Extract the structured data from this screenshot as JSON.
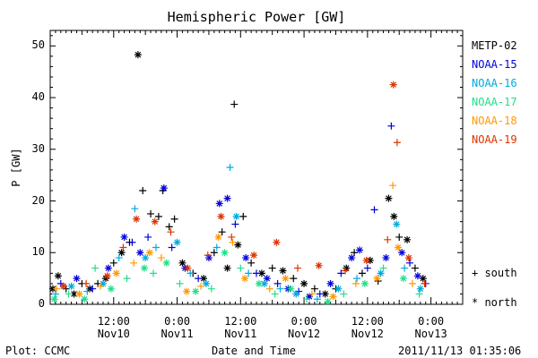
{
  "chart_data": {
    "type": "scatter",
    "title": "Hemispheric Power [GW]",
    "ylabel": "P [GW]",
    "xlabel": "Date and Time",
    "ylim": [
      0,
      53
    ],
    "yticks": [
      0,
      10,
      20,
      30,
      40,
      50
    ],
    "xlim_hours": [
      0,
      78
    ],
    "xticks": [
      {
        "hour": 12,
        "time": "12:00",
        "date": "Nov10"
      },
      {
        "hour": 24,
        "time": "0:00",
        "date": "Nov11"
      },
      {
        "hour": 36,
        "time": "12:00",
        "date": "Nov11"
      },
      {
        "hour": 48,
        "time": "0:00",
        "date": "Nov12"
      },
      {
        "hour": 60,
        "time": "12:00",
        "date": "Nov12"
      },
      {
        "hour": 72,
        "time": "0:00",
        "date": "Nov13"
      }
    ],
    "grid": false,
    "legend_position": "right",
    "series": [
      {
        "name": "METP-02",
        "color": "#000000",
        "points": [
          {
            "x": 0.5,
            "y": 3,
            "h": "n"
          },
          {
            "x": 1.5,
            "y": 5.5,
            "h": "n"
          },
          {
            "x": 3,
            "y": 3,
            "h": "s"
          },
          {
            "x": 4.5,
            "y": 2,
            "h": "n"
          },
          {
            "x": 6,
            "y": 4,
            "h": "s"
          },
          {
            "x": 7.5,
            "y": 3,
            "h": "n"
          },
          {
            "x": 9,
            "y": 4,
            "h": "s"
          },
          {
            "x": 10.5,
            "y": 5,
            "h": "n"
          },
          {
            "x": 12,
            "y": 8,
            "h": "s"
          },
          {
            "x": 13.5,
            "y": 10,
            "h": "n"
          },
          {
            "x": 15,
            "y": 12,
            "h": "s"
          },
          {
            "x": 16.6,
            "y": 48.3,
            "h": "n"
          },
          {
            "x": 17.5,
            "y": 22,
            "h": "s"
          },
          {
            "x": 19,
            "y": 17.5,
            "h": "s"
          },
          {
            "x": 20.5,
            "y": 17,
            "h": "s"
          },
          {
            "x": 21.3,
            "y": 22,
            "h": "s"
          },
          {
            "x": 22.5,
            "y": 15,
            "h": "s"
          },
          {
            "x": 23.5,
            "y": 16.5,
            "h": "s"
          },
          {
            "x": 25,
            "y": 8,
            "h": "n"
          },
          {
            "x": 27,
            "y": 6,
            "h": "s"
          },
          {
            "x": 29,
            "y": 5,
            "h": "n"
          },
          {
            "x": 31,
            "y": 10,
            "h": "s"
          },
          {
            "x": 32.5,
            "y": 14,
            "h": "s"
          },
          {
            "x": 33.5,
            "y": 7,
            "h": "n"
          },
          {
            "x": 34.8,
            "y": 38.7,
            "h": "s"
          },
          {
            "x": 35.5,
            "y": 11.5,
            "h": "n"
          },
          {
            "x": 36.5,
            "y": 17,
            "h": "s"
          },
          {
            "x": 38,
            "y": 8,
            "h": "s"
          },
          {
            "x": 40,
            "y": 6,
            "h": "n"
          },
          {
            "x": 42,
            "y": 7,
            "h": "s"
          },
          {
            "x": 44,
            "y": 6.5,
            "h": "n"
          },
          {
            "x": 46,
            "y": 5,
            "h": "s"
          },
          {
            "x": 48,
            "y": 4,
            "h": "n"
          },
          {
            "x": 50,
            "y": 3,
            "h": "s"
          },
          {
            "x": 52,
            "y": 2,
            "h": "n"
          },
          {
            "x": 54,
            "y": 3,
            "h": "s"
          },
          {
            "x": 56,
            "y": 7,
            "h": "n"
          },
          {
            "x": 57.5,
            "y": 10,
            "h": "s"
          },
          {
            "x": 59,
            "y": 6,
            "h": "s"
          },
          {
            "x": 60.5,
            "y": 8.5,
            "h": "n"
          },
          {
            "x": 62,
            "y": 4.5,
            "h": "s"
          },
          {
            "x": 64,
            "y": 20.5,
            "h": "n"
          },
          {
            "x": 65,
            "y": 17,
            "h": "n"
          },
          {
            "x": 66,
            "y": 13,
            "h": "s"
          },
          {
            "x": 67.5,
            "y": 12.5,
            "h": "n"
          },
          {
            "x": 69,
            "y": 7,
            "h": "s"
          },
          {
            "x": 70.5,
            "y": 5,
            "h": "n"
          }
        ]
      },
      {
        "name": "NOAA-15",
        "color": "#0000dd",
        "points": [
          {
            "x": 2,
            "y": 4,
            "h": "s"
          },
          {
            "x": 5,
            "y": 5,
            "h": "n"
          },
          {
            "x": 8,
            "y": 3,
            "h": "s"
          },
          {
            "x": 11,
            "y": 7,
            "h": "n"
          },
          {
            "x": 14,
            "y": 13,
            "h": "n"
          },
          {
            "x": 15.5,
            "y": 12,
            "h": "s"
          },
          {
            "x": 17,
            "y": 10,
            "h": "n"
          },
          {
            "x": 18.5,
            "y": 13,
            "h": "s"
          },
          {
            "x": 21.5,
            "y": 22.5,
            "h": "n"
          },
          {
            "x": 23,
            "y": 11,
            "h": "s"
          },
          {
            "x": 25.5,
            "y": 7,
            "h": "n"
          },
          {
            "x": 28,
            "y": 5,
            "h": "s"
          },
          {
            "x": 30,
            "y": 9,
            "h": "n"
          },
          {
            "x": 32,
            "y": 19.5,
            "h": "n"
          },
          {
            "x": 33.5,
            "y": 20.5,
            "h": "n"
          },
          {
            "x": 35,
            "y": 15.5,
            "h": "s"
          },
          {
            "x": 37,
            "y": 9,
            "h": "n"
          },
          {
            "x": 39,
            "y": 6,
            "h": "s"
          },
          {
            "x": 41,
            "y": 5,
            "h": "n"
          },
          {
            "x": 43,
            "y": 4,
            "h": "s"
          },
          {
            "x": 45,
            "y": 3,
            "h": "n"
          },
          {
            "x": 47,
            "y": 2.5,
            "h": "s"
          },
          {
            "x": 49,
            "y": 1.5,
            "h": "n"
          },
          {
            "x": 51,
            "y": 2,
            "h": "s"
          },
          {
            "x": 53,
            "y": 4,
            "h": "n"
          },
          {
            "x": 55,
            "y": 6,
            "h": "s"
          },
          {
            "x": 57,
            "y": 9,
            "h": "n"
          },
          {
            "x": 58.5,
            "y": 10.5,
            "h": "n"
          },
          {
            "x": 60,
            "y": 7,
            "h": "s"
          },
          {
            "x": 61.3,
            "y": 18.3,
            "h": "s"
          },
          {
            "x": 63.5,
            "y": 9,
            "h": "n"
          },
          {
            "x": 64.5,
            "y": 34.5,
            "h": "s"
          },
          {
            "x": 66.5,
            "y": 10,
            "h": "n"
          },
          {
            "x": 68,
            "y": 8,
            "h": "s"
          },
          {
            "x": 69.5,
            "y": 5.5,
            "h": "n"
          },
          {
            "x": 71,
            "y": 4,
            "h": "s"
          }
        ]
      },
      {
        "name": "NOAA-16",
        "color": "#00aadd",
        "points": [
          {
            "x": 1,
            "y": 2,
            "h": "s"
          },
          {
            "x": 4,
            "y": 3.5,
            "h": "n"
          },
          {
            "x": 7,
            "y": 2.5,
            "h": "s"
          },
          {
            "x": 10,
            "y": 4,
            "h": "n"
          },
          {
            "x": 13,
            "y": 9,
            "h": "s"
          },
          {
            "x": 16,
            "y": 18.5,
            "h": "s"
          },
          {
            "x": 18,
            "y": 9,
            "h": "n"
          },
          {
            "x": 20,
            "y": 11,
            "h": "s"
          },
          {
            "x": 24,
            "y": 12,
            "h": "n"
          },
          {
            "x": 26.5,
            "y": 6,
            "h": "s"
          },
          {
            "x": 29.5,
            "y": 4,
            "h": "n"
          },
          {
            "x": 31.5,
            "y": 11,
            "h": "s"
          },
          {
            "x": 34,
            "y": 26.5,
            "h": "s"
          },
          {
            "x": 35.2,
            "y": 17,
            "h": "n"
          },
          {
            "x": 37.5,
            "y": 6,
            "h": "s"
          },
          {
            "x": 40.5,
            "y": 4,
            "h": "n"
          },
          {
            "x": 43.5,
            "y": 3,
            "h": "s"
          },
          {
            "x": 46.5,
            "y": 2,
            "h": "n"
          },
          {
            "x": 50.5,
            "y": 1,
            "h": "s"
          },
          {
            "x": 54.5,
            "y": 3,
            "h": "n"
          },
          {
            "x": 58,
            "y": 5,
            "h": "s"
          },
          {
            "x": 62.5,
            "y": 6,
            "h": "n"
          },
          {
            "x": 65.5,
            "y": 15.5,
            "h": "n"
          },
          {
            "x": 67,
            "y": 7,
            "h": "s"
          },
          {
            "x": 70,
            "y": 3,
            "h": "n"
          }
        ]
      },
      {
        "name": "NOAA-17",
        "color": "#22dd88",
        "points": [
          {
            "x": 0.8,
            "y": 1,
            "h": "n"
          },
          {
            "x": 3.5,
            "y": 2,
            "h": "s"
          },
          {
            "x": 6.5,
            "y": 1,
            "h": "n"
          },
          {
            "x": 8.5,
            "y": 7,
            "h": "s"
          },
          {
            "x": 11.5,
            "y": 3,
            "h": "n"
          },
          {
            "x": 14.5,
            "y": 5,
            "h": "s"
          },
          {
            "x": 17.8,
            "y": 7,
            "h": "n"
          },
          {
            "x": 19.5,
            "y": 6,
            "h": "s"
          },
          {
            "x": 22,
            "y": 8,
            "h": "n"
          },
          {
            "x": 24.5,
            "y": 4,
            "h": "s"
          },
          {
            "x": 27.5,
            "y": 2.5,
            "h": "n"
          },
          {
            "x": 30.5,
            "y": 3,
            "h": "s"
          },
          {
            "x": 33,
            "y": 10,
            "h": "n"
          },
          {
            "x": 36,
            "y": 7,
            "h": "s"
          },
          {
            "x": 39.5,
            "y": 4,
            "h": "n"
          },
          {
            "x": 42.5,
            "y": 2,
            "h": "s"
          },
          {
            "x": 45.5,
            "y": 3,
            "h": "n"
          },
          {
            "x": 48.5,
            "y": 1,
            "h": "s"
          },
          {
            "x": 52.5,
            "y": 0.5,
            "h": "n"
          },
          {
            "x": 55.5,
            "y": 2,
            "h": "s"
          },
          {
            "x": 59.5,
            "y": 4,
            "h": "n"
          },
          {
            "x": 63,
            "y": 7,
            "h": "s"
          },
          {
            "x": 66.8,
            "y": 5,
            "h": "n"
          },
          {
            "x": 69.8,
            "y": 2,
            "h": "s"
          }
        ]
      },
      {
        "name": "NOAA-18",
        "color": "#ff9900",
        "points": [
          {
            "x": 1.2,
            "y": 3,
            "h": "s"
          },
          {
            "x": 5.5,
            "y": 2,
            "h": "n"
          },
          {
            "x": 9.5,
            "y": 3.5,
            "h": "s"
          },
          {
            "x": 12.5,
            "y": 6,
            "h": "n"
          },
          {
            "x": 15.8,
            "y": 8,
            "h": "s"
          },
          {
            "x": 18.8,
            "y": 10,
            "h": "n"
          },
          {
            "x": 21,
            "y": 9,
            "h": "s"
          },
          {
            "x": 25.8,
            "y": 2.5,
            "h": "n"
          },
          {
            "x": 28.5,
            "y": 3.5,
            "h": "s"
          },
          {
            "x": 31.8,
            "y": 13,
            "h": "n"
          },
          {
            "x": 34.5,
            "y": 12,
            "h": "s"
          },
          {
            "x": 36.8,
            "y": 5,
            "h": "n"
          },
          {
            "x": 41.5,
            "y": 3,
            "h": "s"
          },
          {
            "x": 44.5,
            "y": 5,
            "h": "n"
          },
          {
            "x": 49.5,
            "y": 2,
            "h": "s"
          },
          {
            "x": 53.5,
            "y": 1.5,
            "h": "n"
          },
          {
            "x": 57.8,
            "y": 4,
            "h": "s"
          },
          {
            "x": 61.8,
            "y": 5,
            "h": "n"
          },
          {
            "x": 64.8,
            "y": 23,
            "h": "s"
          },
          {
            "x": 65.8,
            "y": 11,
            "h": "n"
          },
          {
            "x": 68.5,
            "y": 4,
            "h": "s"
          }
        ]
      },
      {
        "name": "NOAA-19",
        "color": "#dd3300",
        "points": [
          {
            "x": 2.5,
            "y": 3.5,
            "h": "n"
          },
          {
            "x": 6.8,
            "y": 4,
            "h": "s"
          },
          {
            "x": 10.8,
            "y": 5.5,
            "h": "n"
          },
          {
            "x": 13.8,
            "y": 11,
            "h": "s"
          },
          {
            "x": 16.3,
            "y": 16.5,
            "h": "n"
          },
          {
            "x": 19.8,
            "y": 16,
            "h": "n"
          },
          {
            "x": 22.8,
            "y": 14,
            "h": "s"
          },
          {
            "x": 26,
            "y": 7,
            "h": "n"
          },
          {
            "x": 29.8,
            "y": 9.5,
            "h": "s"
          },
          {
            "x": 32.3,
            "y": 17,
            "h": "n"
          },
          {
            "x": 34.3,
            "y": 13,
            "h": "s"
          },
          {
            "x": 38.5,
            "y": 9.5,
            "h": "n"
          },
          {
            "x": 42.8,
            "y": 12,
            "h": "n"
          },
          {
            "x": 46.8,
            "y": 7,
            "h": "s"
          },
          {
            "x": 50.8,
            "y": 7.5,
            "h": "n"
          },
          {
            "x": 55.8,
            "y": 6.5,
            "h": "s"
          },
          {
            "x": 59.8,
            "y": 8.5,
            "h": "n"
          },
          {
            "x": 63.8,
            "y": 12.5,
            "h": "s"
          },
          {
            "x": 64.9,
            "y": 42.5,
            "h": "n"
          },
          {
            "x": 65.6,
            "y": 31.3,
            "h": "s"
          },
          {
            "x": 67.8,
            "y": 9,
            "h": "n"
          },
          {
            "x": 70.8,
            "y": 4,
            "h": "s"
          }
        ]
      }
    ],
    "symbol_legend": [
      {
        "symbol": "+",
        "label": "south"
      },
      {
        "symbol": "*",
        "label": "north"
      }
    ]
  },
  "footer": {
    "left": "Plot: CCMC",
    "right": "2011/11/13 01:35:06"
  }
}
